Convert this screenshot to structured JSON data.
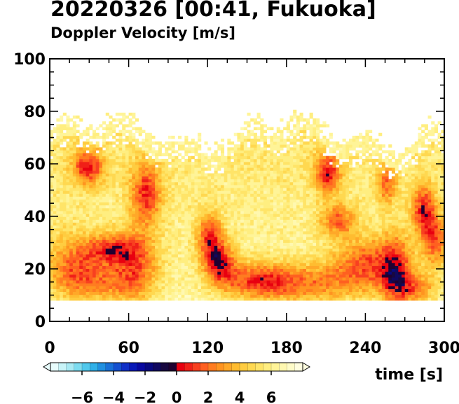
{
  "chart_data": {
    "type": "heatmap",
    "title": "20220326 [00:41, Fukuoka]",
    "subtitle": "Doppler Velocity [m/s]",
    "xlabel": "time [s]",
    "ylabel": "",
    "xlim": [
      0,
      300
    ],
    "ylim": [
      0,
      100
    ],
    "x_ticks": [
      0,
      60,
      120,
      180,
      240,
      300
    ],
    "y_ticks": [
      0,
      20,
      40,
      60,
      80,
      100
    ],
    "data_height_range": [
      8,
      75
    ],
    "colorbar": {
      "vmin": -8,
      "vmax": 8,
      "ticks": [
        -6,
        -4,
        -2,
        0,
        2,
        4,
        6
      ],
      "tick_labels": [
        "−6",
        "−4",
        "−2",
        "0",
        "2",
        "4",
        "6"
      ],
      "extend": "both",
      "colors": [
        "#e8fcfc",
        "#c8f4f8",
        "#a8eaf4",
        "#7cdcf0",
        "#50c8ec",
        "#30b0e8",
        "#2090e0",
        "#1870d8",
        "#1450d0",
        "#1030c8",
        "#0818b8",
        "#0808a0",
        "#080880",
        "#100860",
        "#180840",
        "#200030",
        "#e80010",
        "#f02018",
        "#f84020",
        "#ff6020",
        "#ff7c20",
        "#ff9420",
        "#ffa828",
        "#ffbc30",
        "#ffcc40",
        "#ffd850",
        "#ffe468",
        "#ffee80",
        "#fff498",
        "#fff8b0",
        "#fffcc8",
        "#fffee0"
      ]
    },
    "blobs": [
      {
        "t": 15,
        "h": 22,
        "rt": 22,
        "rh": 12,
        "v": 3.2
      },
      {
        "t": 35,
        "h": 14,
        "rt": 30,
        "rh": 8,
        "v": 3.4
      },
      {
        "t": 65,
        "h": 20,
        "rt": 18,
        "rh": 14,
        "v": 2.6
      },
      {
        "t": 45,
        "h": 27,
        "rt": 20,
        "rh": 6,
        "v": 2.2
      },
      {
        "t": 28,
        "h": 58,
        "rt": 12,
        "rh": 7,
        "v": 1.4
      },
      {
        "t": 72,
        "h": 48,
        "rt": 12,
        "rh": 12,
        "v": 1.6
      },
      {
        "t": 120,
        "h": 32,
        "rt": 10,
        "rh": 9,
        "v": 1.8
      },
      {
        "t": 128,
        "h": 22,
        "rt": 12,
        "rh": 8,
        "v": 1.2
      },
      {
        "t": 155,
        "h": 15,
        "rt": 28,
        "rh": 7,
        "v": 2.6
      },
      {
        "t": 195,
        "h": 14,
        "rt": 45,
        "rh": 8,
        "v": 2.8
      },
      {
        "t": 210,
        "h": 56,
        "rt": 10,
        "rh": 8,
        "v": 1.4
      },
      {
        "t": 218,
        "h": 38,
        "rt": 14,
        "rh": 6,
        "v": 2.4
      },
      {
        "t": 240,
        "h": 22,
        "rt": 25,
        "rh": 10,
        "v": 2.4
      },
      {
        "t": 262,
        "h": 18,
        "rt": 12,
        "rh": 14,
        "v": 1.6
      },
      {
        "t": 283,
        "h": 42,
        "rt": 9,
        "rh": 10,
        "v": 1.4
      },
      {
        "t": 292,
        "h": 30,
        "rt": 10,
        "rh": 10,
        "v": 2.2
      },
      {
        "t": 278,
        "h": 12,
        "rt": 16,
        "rh": 6,
        "v": 3.0
      },
      {
        "t": 255,
        "h": 52,
        "rt": 8,
        "rh": 8,
        "v": 2.8
      }
    ]
  }
}
